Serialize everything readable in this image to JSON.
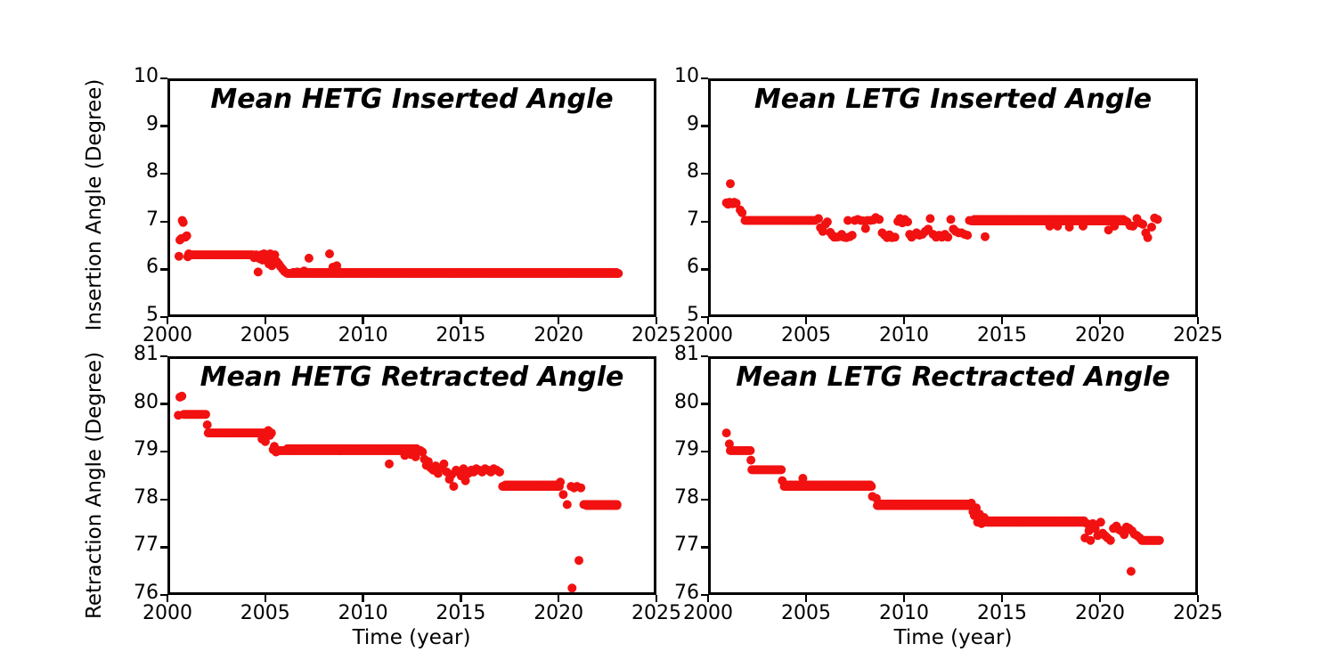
{
  "chart_data": [
    {
      "id": "hetg-inserted",
      "type": "scatter",
      "title": "Mean HETG Inserted Angle",
      "xlabel": "",
      "ylabel": "Insertion Angle (Degree)",
      "xlim": [
        2000,
        2025
      ],
      "ylim": [
        5,
        10
      ],
      "xticks": [
        2000,
        2005,
        2010,
        2015,
        2020,
        2025
      ],
      "yticks": [
        5,
        6,
        7,
        8,
        9,
        10
      ],
      "grid": false,
      "legend": "none",
      "marker_color": "#f21111",
      "segments": [
        [
          2001.0,
          2004.25,
          0.07,
          6.36
        ],
        [
          2006.0,
          2022.9,
          0.06,
          5.97
        ],
        [
          2006.3,
          2022.8,
          0.13,
          5.99
        ]
      ],
      "points": [
        [
          2000.45,
          6.33
        ],
        [
          2000.5,
          6.67
        ],
        [
          2000.57,
          6.7
        ],
        [
          2000.62,
          7.08
        ],
        [
          2000.67,
          7.04
        ],
        [
          2000.78,
          6.73
        ],
        [
          2000.85,
          6.76
        ],
        [
          2000.9,
          6.32
        ],
        [
          2000.95,
          6.38
        ],
        [
          2004.3,
          6.3
        ],
        [
          2004.4,
          6.36
        ],
        [
          2004.5,
          6.0
        ],
        [
          2004.57,
          6.28
        ],
        [
          2004.65,
          6.36
        ],
        [
          2004.72,
          6.25
        ],
        [
          2004.8,
          6.38
        ],
        [
          2004.9,
          6.31
        ],
        [
          2004.97,
          6.36
        ],
        [
          2005.05,
          6.17
        ],
        [
          2005.12,
          6.38
        ],
        [
          2005.2,
          6.13
        ],
        [
          2005.28,
          6.3
        ],
        [
          2005.35,
          6.36
        ],
        [
          2005.45,
          6.22
        ],
        [
          2005.55,
          6.17
        ],
        [
          2005.65,
          6.11
        ],
        [
          2005.75,
          6.06
        ],
        [
          2005.85,
          6.01
        ],
        [
          2005.95,
          5.98
        ],
        [
          2006.5,
          6.0
        ],
        [
          2006.85,
          6.02
        ],
        [
          2007.1,
          6.29
        ],
        [
          2008.15,
          6.38
        ],
        [
          2008.32,
          6.1
        ],
        [
          2008.52,
          6.13
        ]
      ]
    },
    {
      "id": "letg-inserted",
      "type": "scatter",
      "title": "Mean LETG Inserted Angle",
      "xlabel": "",
      "ylabel": "",
      "xlim": [
        2000,
        2025
      ],
      "ylim": [
        5,
        10
      ],
      "xticks": [
        2000,
        2005,
        2010,
        2015,
        2020,
        2025
      ],
      "yticks": [
        5,
        6,
        7,
        8,
        9,
        10
      ],
      "grid": false,
      "legend": "none",
      "marker_color": "#f21111",
      "segments": [
        [
          2001.75,
          2005.35,
          0.07,
          7.08
        ],
        [
          2013.3,
          2021.15,
          0.055,
          7.07
        ],
        [
          2013.45,
          2021.05,
          0.1,
          7.1
        ]
      ],
      "points": [
        [
          2000.8,
          7.45
        ],
        [
          2000.88,
          7.42
        ],
        [
          2000.95,
          7.46
        ],
        [
          2001.0,
          7.85
        ],
        [
          2001.06,
          7.45
        ],
        [
          2001.12,
          7.43
        ],
        [
          2001.2,
          7.46
        ],
        [
          2001.3,
          7.44
        ],
        [
          2001.5,
          7.3
        ],
        [
          2001.6,
          7.24
        ],
        [
          2005.5,
          7.12
        ],
        [
          2005.6,
          6.93
        ],
        [
          2005.72,
          6.85
        ],
        [
          2005.85,
          7.0
        ],
        [
          2005.95,
          7.05
        ],
        [
          2006.1,
          6.83
        ],
        [
          2006.2,
          6.77
        ],
        [
          2006.3,
          6.73
        ],
        [
          2006.42,
          6.73
        ],
        [
          2006.55,
          6.74
        ],
        [
          2006.68,
          6.79
        ],
        [
          2006.8,
          6.73
        ],
        [
          2006.92,
          6.72
        ],
        [
          2007.0,
          7.08
        ],
        [
          2007.1,
          6.74
        ],
        [
          2007.22,
          6.77
        ],
        [
          2007.35,
          7.08
        ],
        [
          2007.5,
          7.1
        ],
        [
          2007.65,
          7.08
        ],
        [
          2007.8,
          7.07
        ],
        [
          2007.9,
          6.91
        ],
        [
          2008.0,
          7.08
        ],
        [
          2008.15,
          7.08
        ],
        [
          2008.3,
          7.09
        ],
        [
          2008.42,
          7.14
        ],
        [
          2008.6,
          7.1
        ],
        [
          2008.75,
          6.82
        ],
        [
          2008.88,
          6.77
        ],
        [
          2009.0,
          6.72
        ],
        [
          2009.12,
          6.78
        ],
        [
          2009.25,
          6.72
        ],
        [
          2009.4,
          6.73
        ],
        [
          2009.55,
          7.06
        ],
        [
          2009.65,
          7.12
        ],
        [
          2009.78,
          7.03
        ],
        [
          2009.9,
          7.1
        ],
        [
          2010.05,
          7.05
        ],
        [
          2010.15,
          6.79
        ],
        [
          2010.25,
          6.73
        ],
        [
          2010.38,
          6.77
        ],
        [
          2010.5,
          6.82
        ],
        [
          2010.65,
          6.77
        ],
        [
          2010.8,
          6.79
        ],
        [
          2010.95,
          6.85
        ],
        [
          2011.1,
          6.9
        ],
        [
          2011.2,
          7.12
        ],
        [
          2011.35,
          6.79
        ],
        [
          2011.5,
          6.73
        ],
        [
          2011.65,
          6.77
        ],
        [
          2011.8,
          6.73
        ],
        [
          2011.95,
          6.79
        ],
        [
          2012.1,
          6.73
        ],
        [
          2012.25,
          7.1
        ],
        [
          2012.38,
          6.9
        ],
        [
          2012.5,
          6.85
        ],
        [
          2012.65,
          6.82
        ],
        [
          2012.8,
          6.82
        ],
        [
          2012.95,
          6.79
        ],
        [
          2013.1,
          6.77
        ],
        [
          2013.2,
          7.08
        ],
        [
          2014.0,
          6.74
        ],
        [
          2017.3,
          6.96
        ],
        [
          2017.7,
          6.96
        ],
        [
          2018.3,
          6.94
        ],
        [
          2019.0,
          6.96
        ],
        [
          2020.3,
          6.88
        ],
        [
          2020.6,
          6.96
        ],
        [
          2021.25,
          7.05
        ],
        [
          2021.4,
          6.97
        ],
        [
          2021.55,
          6.96
        ],
        [
          2021.75,
          7.12
        ],
        [
          2021.9,
          7.03
        ],
        [
          2022.05,
          7.0
        ],
        [
          2022.2,
          6.82
        ],
        [
          2022.3,
          6.72
        ],
        [
          2022.5,
          6.94
        ],
        [
          2022.65,
          7.13
        ],
        [
          2022.8,
          7.1
        ]
      ]
    },
    {
      "id": "hetg-retracted",
      "type": "scatter",
      "title": "Mean HETG Retracted Angle",
      "xlabel": "Time (year)",
      "ylabel": "Retraction Angle (Degree)",
      "xlim": [
        2000,
        2025
      ],
      "ylim": [
        76,
        81
      ],
      "xticks": [
        2000,
        2005,
        2010,
        2015,
        2020,
        2025
      ],
      "yticks": [
        76,
        77,
        78,
        79,
        80,
        81
      ],
      "grid": false,
      "legend": "none",
      "marker_color": "#f21111",
      "segments": [
        [
          2000.7,
          2001.85,
          0.07,
          79.84
        ],
        [
          2001.95,
          2004.85,
          0.06,
          79.45
        ],
        [
          2005.5,
          2012.8,
          0.05,
          79.08
        ],
        [
          2006.0,
          2012.6,
          0.11,
          79.12
        ],
        [
          2017.0,
          2019.9,
          0.05,
          78.33
        ],
        [
          2017.15,
          2019.8,
          0.11,
          78.36
        ],
        [
          2021.15,
          2022.85,
          0.05,
          77.95
        ],
        [
          2021.3,
          2022.8,
          0.11,
          77.93
        ]
      ],
      "points": [
        [
          2000.5,
          80.2
        ],
        [
          2000.6,
          80.22
        ],
        [
          2000.42,
          79.82
        ],
        [
          2001.9,
          79.62
        ],
        [
          2004.7,
          79.32
        ],
        [
          2004.87,
          79.27
        ],
        [
          2004.95,
          79.45
        ],
        [
          2005.02,
          79.5
        ],
        [
          2005.1,
          79.4
        ],
        [
          2005.18,
          79.45
        ],
        [
          2005.27,
          79.1
        ],
        [
          2005.33,
          79.17
        ],
        [
          2005.42,
          79.05
        ],
        [
          2011.2,
          78.8
        ],
        [
          2012.0,
          78.98
        ],
        [
          2012.3,
          79.0
        ],
        [
          2012.55,
          78.95
        ],
        [
          2012.9,
          79.05
        ],
        [
          2013.0,
          78.9
        ],
        [
          2013.1,
          78.77
        ],
        [
          2013.2,
          78.85
        ],
        [
          2013.32,
          78.72
        ],
        [
          2013.45,
          78.67
        ],
        [
          2013.58,
          78.76
        ],
        [
          2013.7,
          78.6
        ],
        [
          2013.85,
          78.72
        ],
        [
          2014.0,
          78.8
        ],
        [
          2014.15,
          78.63
        ],
        [
          2014.28,
          78.48
        ],
        [
          2014.4,
          78.58
        ],
        [
          2014.5,
          78.33
        ],
        [
          2014.62,
          78.67
        ],
        [
          2014.75,
          78.63
        ],
        [
          2014.88,
          78.55
        ],
        [
          2015.0,
          78.7
        ],
        [
          2015.1,
          78.45
        ],
        [
          2015.25,
          78.6
        ],
        [
          2015.4,
          78.67
        ],
        [
          2015.52,
          78.63
        ],
        [
          2015.65,
          78.7
        ],
        [
          2015.8,
          78.67
        ],
        [
          2015.95,
          78.63
        ],
        [
          2016.1,
          78.7
        ],
        [
          2016.25,
          78.67
        ],
        [
          2016.4,
          78.63
        ],
        [
          2016.55,
          78.7
        ],
        [
          2016.7,
          78.67
        ],
        [
          2016.85,
          78.63
        ],
        [
          2019.95,
          78.42
        ],
        [
          2020.1,
          78.16
        ],
        [
          2020.3,
          77.95
        ],
        [
          2020.5,
          78.33
        ],
        [
          2020.65,
          78.3
        ],
        [
          2020.8,
          78.33
        ],
        [
          2021.0,
          78.3
        ],
        [
          2020.55,
          76.2
        ],
        [
          2020.9,
          76.78
        ]
      ]
    },
    {
      "id": "letg-retracted",
      "type": "scatter",
      "title": "Mean LETG Rectracted Angle",
      "xlabel": "Time (year)",
      "ylabel": "",
      "xlim": [
        2000,
        2025
      ],
      "ylim": [
        76,
        81
      ],
      "xticks": [
        2000,
        2005,
        2010,
        2015,
        2020,
        2025
      ],
      "yticks": [
        76,
        77,
        78,
        79,
        80,
        81
      ],
      "grid": false,
      "legend": "none",
      "marker_color": "#f21111",
      "segments": [
        [
          2001.0,
          2002.0,
          0.06,
          79.08
        ],
        [
          2002.1,
          2003.6,
          0.06,
          78.68
        ],
        [
          2003.75,
          2008.2,
          0.05,
          78.33
        ],
        [
          2003.85,
          2008.1,
          0.11,
          78.36
        ],
        [
          2008.5,
          2013.25,
          0.05,
          77.93
        ],
        [
          2008.6,
          2013.2,
          0.11,
          77.96
        ],
        [
          2014.1,
          2019.05,
          0.05,
          77.58
        ],
        [
          2014.2,
          2019.0,
          0.11,
          77.61
        ],
        [
          2022.0,
          2022.9,
          0.05,
          77.2
        ]
      ],
      "points": [
        [
          2000.8,
          79.45
        ],
        [
          2000.95,
          79.22
        ],
        [
          2002.05,
          78.88
        ],
        [
          2003.65,
          78.45
        ],
        [
          2004.7,
          78.5
        ],
        [
          2008.25,
          78.12
        ],
        [
          2008.45,
          78.08
        ],
        [
          2013.3,
          77.98
        ],
        [
          2013.38,
          77.8
        ],
        [
          2013.45,
          77.72
        ],
        [
          2013.55,
          77.88
        ],
        [
          2013.62,
          77.58
        ],
        [
          2013.72,
          77.75
        ],
        [
          2013.82,
          77.55
        ],
        [
          2013.95,
          77.68
        ],
        [
          2014.05,
          77.58
        ],
        [
          2019.1,
          77.25
        ],
        [
          2019.2,
          77.55
        ],
        [
          2019.3,
          77.4
        ],
        [
          2019.38,
          77.2
        ],
        [
          2019.5,
          77.55
        ],
        [
          2019.62,
          77.45
        ],
        [
          2019.75,
          77.3
        ],
        [
          2019.9,
          77.58
        ],
        [
          2020.0,
          77.35
        ],
        [
          2020.12,
          77.3
        ],
        [
          2020.25,
          77.25
        ],
        [
          2020.4,
          77.2
        ],
        [
          2020.55,
          77.45
        ],
        [
          2020.7,
          77.5
        ],
        [
          2020.85,
          77.42
        ],
        [
          2021.0,
          77.38
        ],
        [
          2021.1,
          77.32
        ],
        [
          2021.22,
          77.48
        ],
        [
          2021.35,
          77.45
        ],
        [
          2021.5,
          77.4
        ],
        [
          2021.62,
          77.33
        ],
        [
          2021.75,
          77.3
        ],
        [
          2021.9,
          77.25
        ],
        [
          2021.45,
          76.55
        ]
      ]
    }
  ]
}
